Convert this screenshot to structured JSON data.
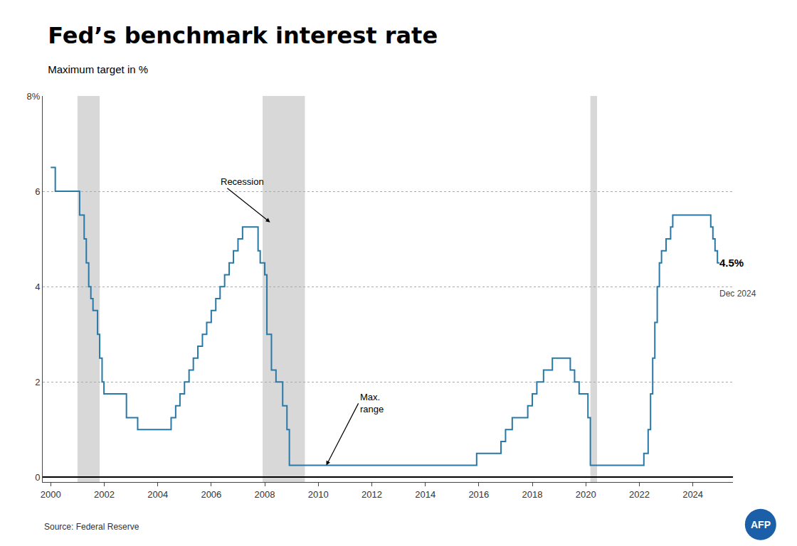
{
  "chart_data": {
    "type": "line",
    "title": "Fed’s benchmark interest rate",
    "subtitle": "Maximum target in %",
    "source": "Source: Federal Reserve",
    "logo": "AFP",
    "logo_color": "#1a5fa8",
    "color": "#2878a8",
    "line_style": "step",
    "grid": "y",
    "x": [
      2000.0,
      2000.08,
      2000.17,
      2001.0,
      2001.08,
      2001.25,
      2001.33,
      2001.42,
      2001.5,
      2001.58,
      2001.75,
      2001.83,
      2001.92,
      2001.99,
      2002.0,
      2002.83,
      2003.25,
      2004.42,
      2004.5,
      2004.67,
      2004.83,
      2005.0,
      2005.17,
      2005.33,
      2005.5,
      2005.67,
      2005.83,
      2006.0,
      2006.17,
      2006.33,
      2006.5,
      2006.67,
      2006.83,
      2007.0,
      2007.17,
      2007.58,
      2007.75,
      2007.83,
      2007.92,
      2008.0,
      2008.08,
      2008.25,
      2008.42,
      2008.67,
      2008.83,
      2008.92,
      2015.83,
      2015.92,
      2016.83,
      2017.0,
      2017.25,
      2017.83,
      2018.0,
      2018.17,
      2018.42,
      2018.75,
      2019.17,
      2019.42,
      2019.58,
      2019.75,
      2019.83,
      2020.0,
      2020.08,
      2020.17,
      2021.83,
      2022.17,
      2022.33,
      2022.42,
      2022.5,
      2022.58,
      2022.67,
      2022.75,
      2022.83,
      2023.0,
      2023.17,
      2023.25,
      2024.33,
      2024.67,
      2024.75,
      2024.83,
      2024.92,
      2025.0
    ],
    "values": [
      6.5,
      6.5,
      6.0,
      6.0,
      5.5,
      5.0,
      4.5,
      4.0,
      3.75,
      3.5,
      3.0,
      2.5,
      2.0,
      1.75,
      1.75,
      1.25,
      1.0,
      1.0,
      1.25,
      1.5,
      1.75,
      2.0,
      2.25,
      2.5,
      2.75,
      3.0,
      3.25,
      3.5,
      3.75,
      4.0,
      4.25,
      4.5,
      4.75,
      5.0,
      5.25,
      5.25,
      4.75,
      4.5,
      4.5,
      4.25,
      3.0,
      2.25,
      2.0,
      1.5,
      1.0,
      0.25,
      0.25,
      0.5,
      0.75,
      1.0,
      1.25,
      1.5,
      1.75,
      2.0,
      2.25,
      2.5,
      2.5,
      2.25,
      2.0,
      1.75,
      1.75,
      1.75,
      1.25,
      0.25,
      0.25,
      0.5,
      1.0,
      1.75,
      2.5,
      3.25,
      4.0,
      4.5,
      4.75,
      5.0,
      5.25,
      5.5,
      5.5,
      5.25,
      5.0,
      4.75,
      4.5,
      4.5
    ],
    "xlim": [
      1999.7,
      2025.5
    ],
    "ylim": [
      -0.1,
      8.0
    ],
    "xticks": [
      2000,
      2002,
      2004,
      2006,
      2008,
      2010,
      2012,
      2014,
      2016,
      2018,
      2020,
      2022,
      2024
    ],
    "yticks": [
      0,
      2,
      4,
      6,
      {
        "value": 8,
        "label": "8%"
      }
    ],
    "recessions": [
      [
        2001.0,
        2001.83
      ],
      [
        2007.92,
        2009.5
      ],
      [
        2020.17,
        2020.42
      ]
    ],
    "recession_color": "#c8c8c8",
    "annotations": [
      {
        "text": "Recession",
        "x": 2008.2,
        "y": 5.35,
        "ax": 2006.3,
        "ay": 6.2
      },
      {
        "text": "Max.\nrange",
        "x": 2010.3,
        "y": 0.25,
        "ax": 2011.5,
        "ay": 1.55
      },
      {
        "text": "4.5%",
        "x": 2024.95,
        "y": 4.5
      },
      {
        "text": "Dec 2024",
        "x": 2024.95,
        "y": 3.85
      }
    ]
  }
}
